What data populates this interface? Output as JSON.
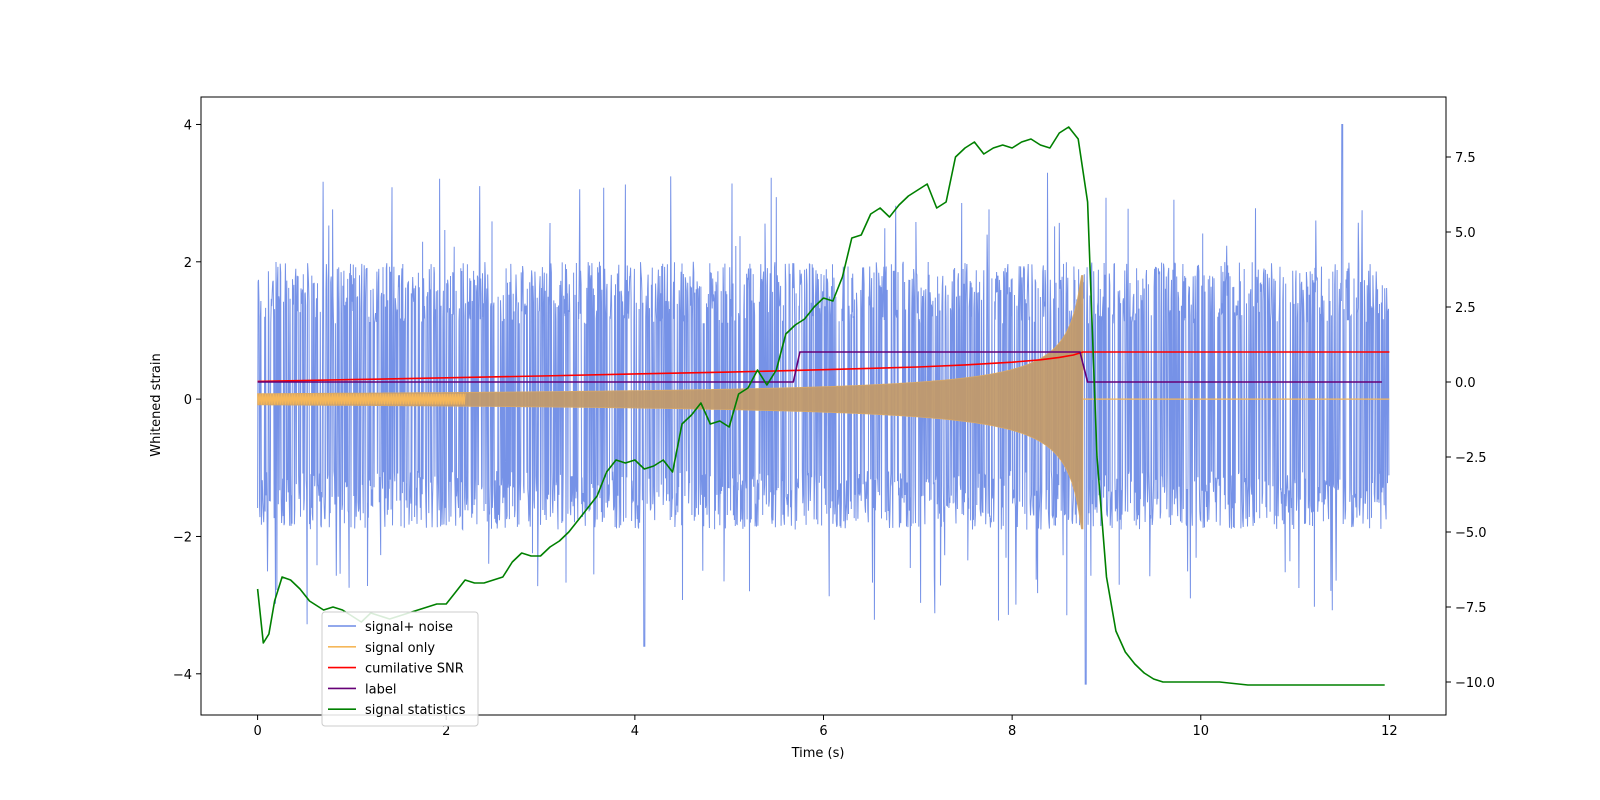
{
  "chart_data": {
    "type": "line",
    "title": "",
    "xlabel": "Time (s)",
    "ylabel": "Whitened strain",
    "xlim": [
      -0.6,
      12.6
    ],
    "ylim_left": [
      -4.6,
      4.4
    ],
    "ylim_right": [
      -11.1,
      9.5
    ],
    "x_ticks": [
      0,
      2,
      4,
      6,
      8,
      10,
      12
    ],
    "y_ticks_left": [
      -4,
      -2,
      0,
      2,
      4
    ],
    "y_ticks_right": [
      -10.0,
      -7.5,
      -5.0,
      -2.5,
      0.0,
      2.5,
      5.0,
      7.5
    ],
    "legend_position": "lower-left",
    "legend": [
      {
        "label": "signal+ noise",
        "color": "#6f8ce6"
      },
      {
        "label": "signal only",
        "color": "#f5b75a"
      },
      {
        "label": "cumilative SNR",
        "color": "#ff0000"
      },
      {
        "label": "label",
        "color": "#660077"
      },
      {
        "label": "signal statistics",
        "color": "#008000"
      }
    ],
    "series": [
      {
        "name": "signal+ noise",
        "axis": "left",
        "style": "noise band",
        "x_start": 0,
        "x_end": 12,
        "typical_range": [
          -1.9,
          2.0
        ],
        "occasional_extremes": [
          -4.15,
          4.0
        ]
      },
      {
        "name": "signal only",
        "axis": "left",
        "style": "chirp envelope",
        "x_start": 0,
        "x_merge": 8.75,
        "x_end": 12,
        "amplitude_start": 0.08,
        "amplitude_peak": 1.8,
        "value_after_merge": 0.0
      },
      {
        "name": "cumilative SNR",
        "axis": "right",
        "x": [
          0,
          1,
          2,
          3,
          4,
          5,
          6,
          7,
          7.5,
          8,
          8.3,
          8.5,
          8.65,
          8.75,
          12
        ],
        "y": [
          0.02,
          0.08,
          0.14,
          0.2,
          0.27,
          0.33,
          0.41,
          0.5,
          0.57,
          0.66,
          0.74,
          0.82,
          0.9,
          1.0,
          1.0
        ]
      },
      {
        "name": "label",
        "axis": "right",
        "x": [
          0,
          5.68,
          5.75,
          8.72,
          8.8,
          11.92
        ],
        "y": [
          0,
          0,
          1,
          1,
          0,
          0
        ]
      },
      {
        "name": "signal statistics",
        "axis": "right",
        "x": [
          0,
          0.06,
          0.12,
          0.18,
          0.26,
          0.35,
          0.45,
          0.55,
          0.6,
          0.7,
          0.8,
          0.9,
          1.0,
          1.1,
          1.2,
          1.3,
          1.4,
          1.5,
          1.6,
          1.7,
          1.8,
          1.9,
          2.0,
          2.1,
          2.2,
          2.3,
          2.4,
          2.5,
          2.6,
          2.7,
          2.8,
          2.9,
          3.0,
          3.1,
          3.2,
          3.3,
          3.4,
          3.5,
          3.6,
          3.7,
          3.8,
          3.9,
          4.0,
          4.1,
          4.2,
          4.3,
          4.4,
          4.5,
          4.6,
          4.7,
          4.8,
          4.9,
          5.0,
          5.1,
          5.2,
          5.3,
          5.4,
          5.5,
          5.6,
          5.7,
          5.8,
          5.9,
          6.0,
          6.1,
          6.2,
          6.3,
          6.4,
          6.5,
          6.6,
          6.7,
          6.8,
          6.9,
          7.0,
          7.1,
          7.2,
          7.3,
          7.4,
          7.5,
          7.6,
          7.7,
          7.8,
          7.9,
          8.0,
          8.1,
          8.2,
          8.3,
          8.4,
          8.5,
          8.6,
          8.7,
          8.8,
          8.9,
          9.0,
          9.1,
          9.2,
          9.3,
          9.4,
          9.5,
          9.6,
          9.8,
          10.0,
          10.2,
          10.5,
          10.8,
          11.0,
          11.2,
          11.4,
          11.6,
          11.8,
          11.95
        ],
        "y": [
          -6.9,
          -8.7,
          -8.4,
          -7.3,
          -6.5,
          -6.6,
          -6.9,
          -7.3,
          -7.4,
          -7.6,
          -7.5,
          -7.6,
          -7.8,
          -8.0,
          -7.7,
          -7.8,
          -7.9,
          -7.8,
          -7.7,
          -7.6,
          -7.5,
          -7.4,
          -7.4,
          -7.0,
          -6.6,
          -6.7,
          -6.7,
          -6.6,
          -6.5,
          -6.0,
          -5.7,
          -5.8,
          -5.8,
          -5.5,
          -5.3,
          -5.0,
          -4.6,
          -4.2,
          -3.8,
          -3.0,
          -2.6,
          -2.7,
          -2.6,
          -2.9,
          -2.8,
          -2.6,
          -3.0,
          -1.4,
          -1.1,
          -0.7,
          -1.4,
          -1.3,
          -1.5,
          -0.4,
          -0.2,
          0.4,
          -0.1,
          0.4,
          1.6,
          1.9,
          2.1,
          2.5,
          2.8,
          2.7,
          3.5,
          4.8,
          4.9,
          5.6,
          5.8,
          5.5,
          5.9,
          6.2,
          6.4,
          6.6,
          5.8,
          6.0,
          7.5,
          7.8,
          8.0,
          7.6,
          7.8,
          7.9,
          7.8,
          8.0,
          8.1,
          7.9,
          7.8,
          8.3,
          8.5,
          8.1,
          6.0,
          -2.5,
          -6.5,
          -8.3,
          -9.0,
          -9.4,
          -9.7,
          -9.9,
          -10.0,
          -10.0,
          -10.0,
          -10.0,
          -10.1,
          -10.1,
          -10.1,
          -10.1,
          -10.1,
          -10.1,
          -10.1,
          -10.1
        ]
      }
    ]
  }
}
